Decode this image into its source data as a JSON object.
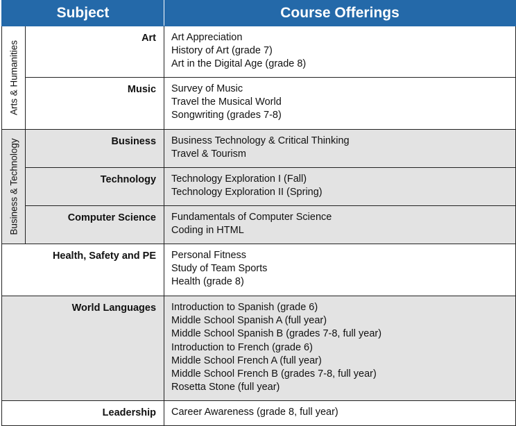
{
  "header": {
    "subject": "Subject",
    "courses": "Course Offerings"
  },
  "groups": [
    {
      "label": "Arts & Humanities"
    },
    {
      "label": "Business & Technology"
    }
  ],
  "rows": [
    {
      "subject": "Art",
      "courses": [
        "Art Appreciation",
        "History of Art (grade 7)",
        "Art in the Digital Age (grade 8)"
      ]
    },
    {
      "subject": "Music",
      "courses": [
        "Survey of Music",
        "Travel the Musical World",
        "Songwriting (grades 7-8)"
      ]
    },
    {
      "subject": "Business",
      "courses": [
        "Business Technology & Critical Thinking",
        "Travel & Tourism"
      ]
    },
    {
      "subject": "Technology",
      "courses": [
        "Technology Exploration I (Fall)",
        "Technology Exploration II (Spring)"
      ]
    },
    {
      "subject": "Computer Science",
      "courses": [
        "Fundamentals of Computer Science",
        "Coding in HTML"
      ]
    },
    {
      "subject": "Health, Safety and PE",
      "courses": [
        "Personal Fitness",
        "Study of Team Sports",
        "Health (grade 8)"
      ]
    },
    {
      "subject": "World Languages",
      "courses": [
        "Introduction to Spanish (grade 6)",
        "Middle School Spanish A (full year)",
        "Middle School Spanish B (grades 7-8, full year)",
        "Introduction to French (grade 6)",
        "Middle School French A (full year)",
        "Middle School French B (grades 7-8, full year)",
        "Rosetta Stone (full year)"
      ]
    },
    {
      "subject": "Leadership",
      "courses": [
        "Career Awareness (grade 8, full year)"
      ]
    }
  ],
  "colors": {
    "header_bg": "#2469a9",
    "shade": "#e3e3e3"
  }
}
